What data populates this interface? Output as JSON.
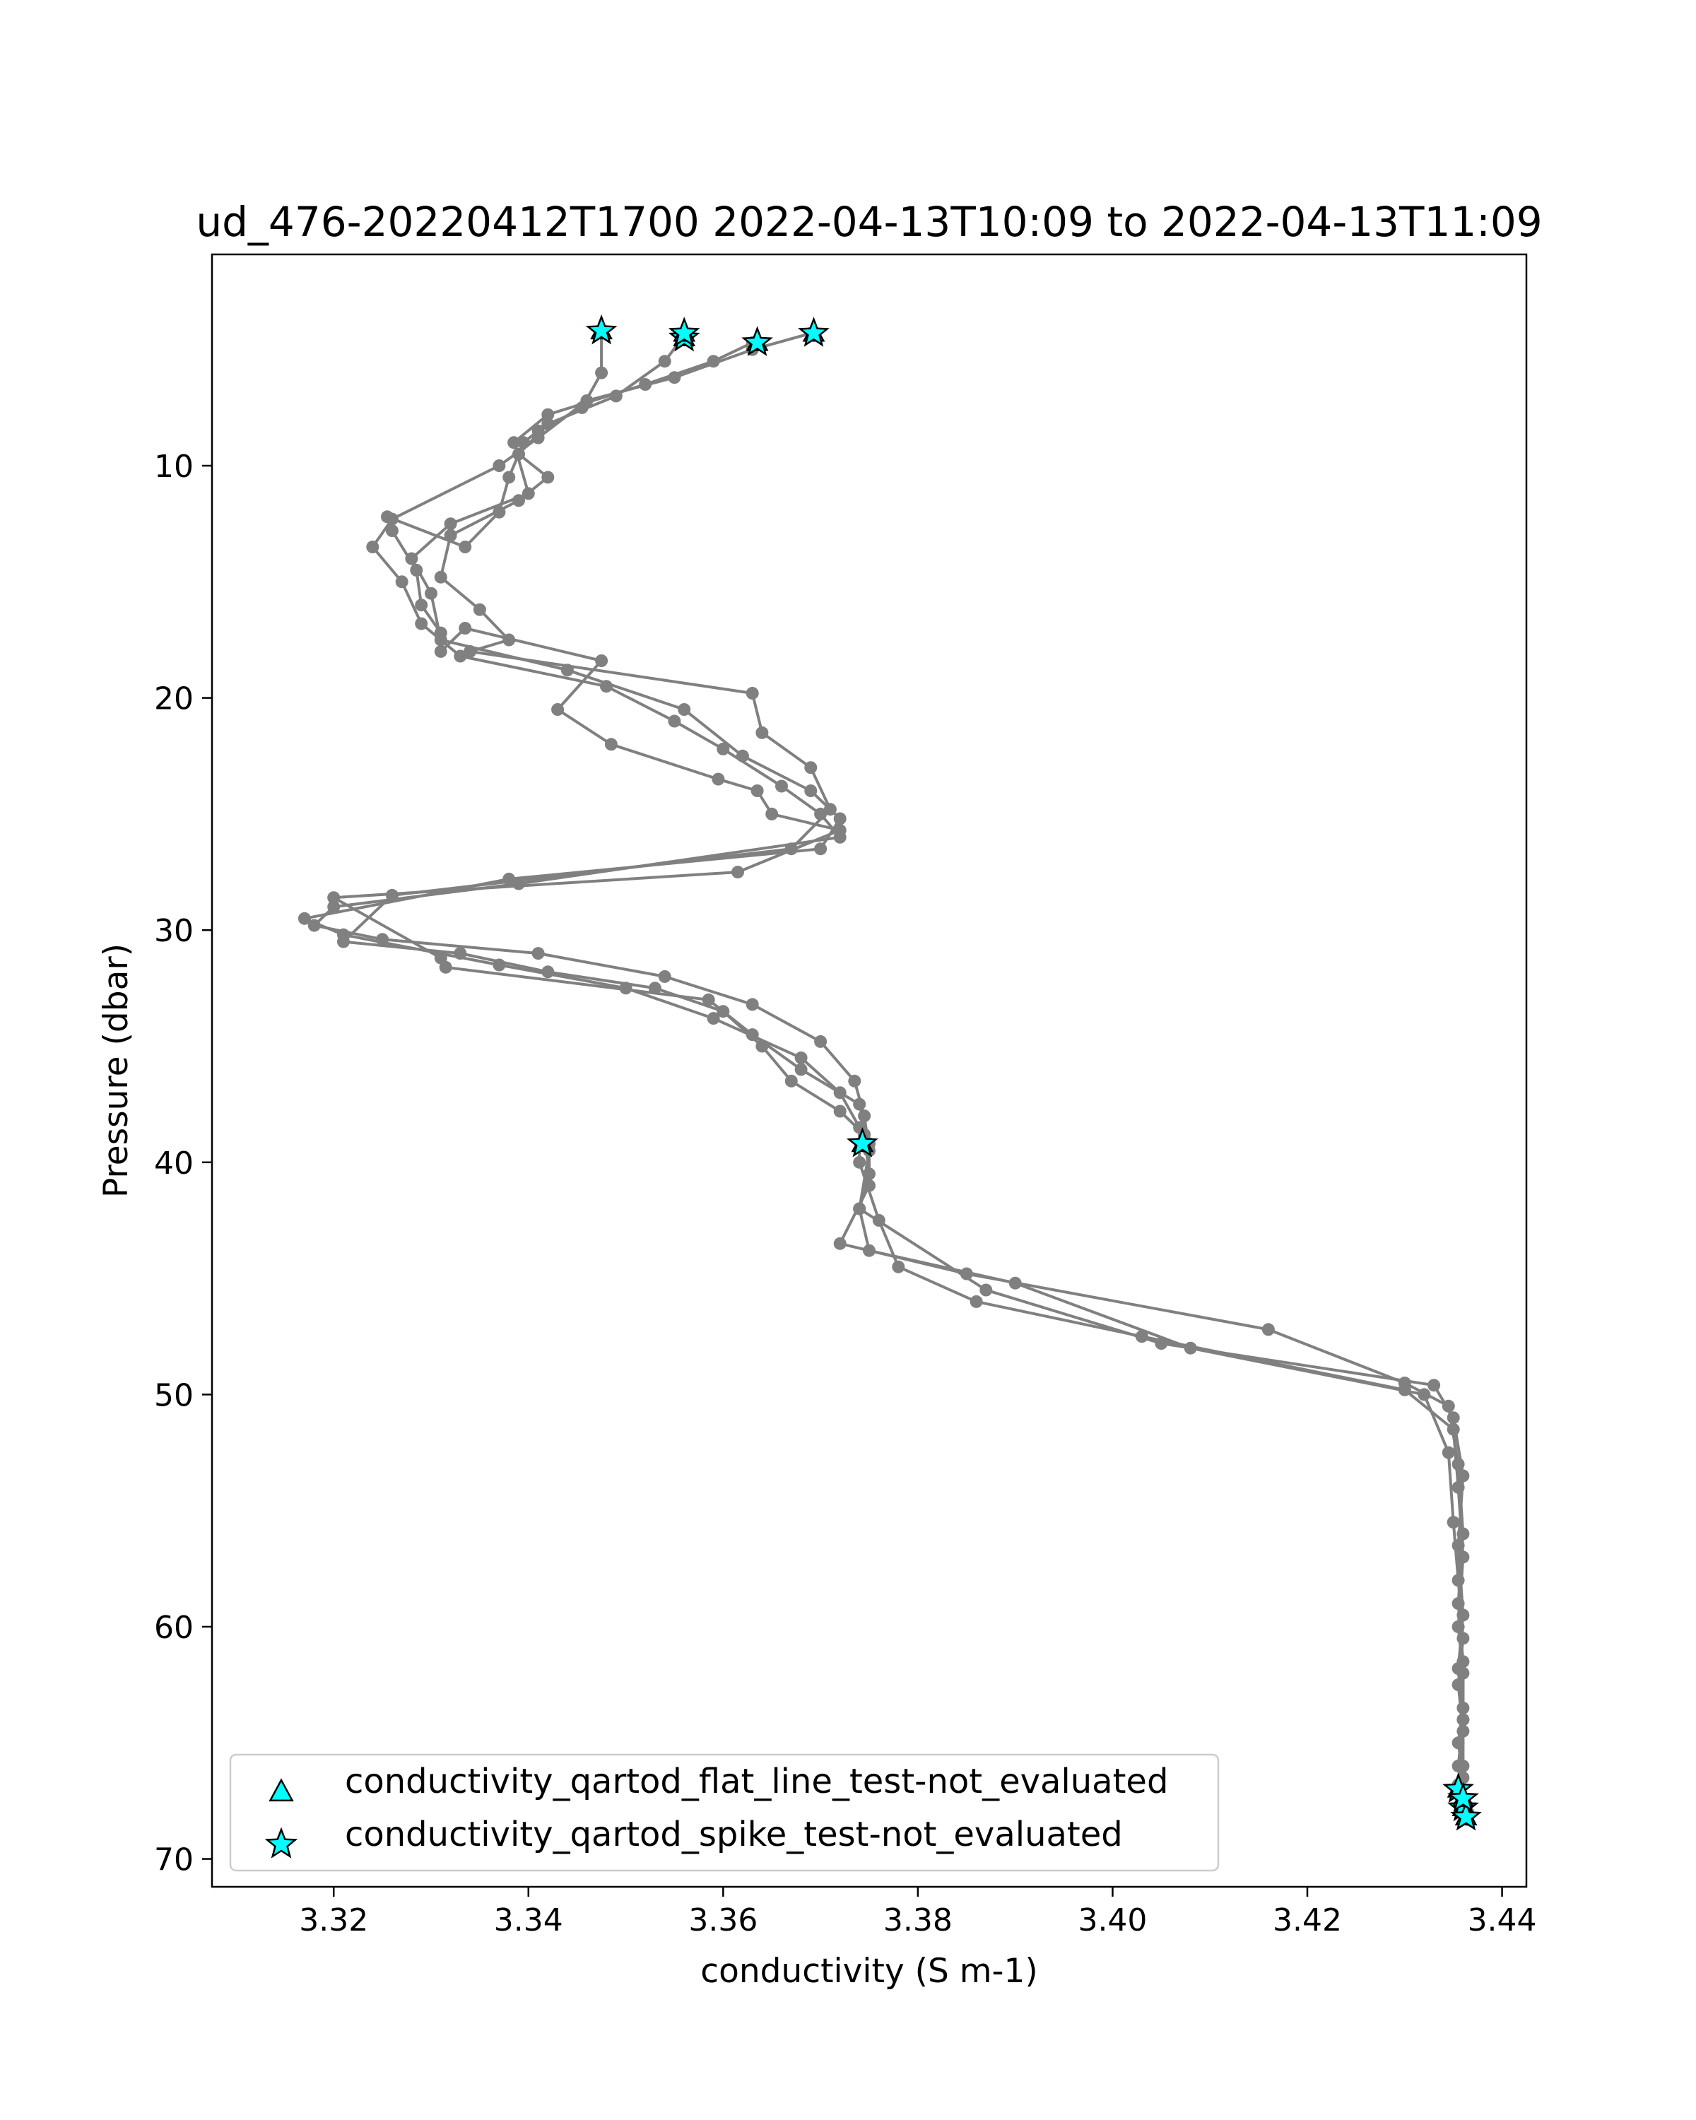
{
  "chart_data": {
    "type": "line",
    "title": "ud_476-20220412T1700 2022-04-13T10:09 to 2022-04-13T11:09",
    "xlabel": "conductivity (S m-1)",
    "ylabel": "Pressure (dbar)",
    "xlim": [
      3.3075,
      3.4425
    ],
    "ylim": [
      71.2,
      0.9
    ],
    "y_inverted": true,
    "grid": false,
    "xticks": [
      "3.32",
      "3.34",
      "3.36",
      "3.38",
      "3.40",
      "3.42",
      "3.44"
    ],
    "xtick_values": [
      3.32,
      3.34,
      3.36,
      3.38,
      3.4,
      3.42,
      3.44
    ],
    "yticks": [
      "10",
      "20",
      "30",
      "40",
      "50",
      "60",
      "70"
    ],
    "ytick_values": [
      10,
      20,
      30,
      40,
      50,
      60,
      70
    ],
    "line_color": "#808080",
    "marker_color": "#00FFFF",
    "legend_position": "lower left",
    "legend": [
      {
        "label": "conductivity_qartod_flat_line_test-not_evaluated",
        "marker": "triangle"
      },
      {
        "label": "conductivity_qartod_spike_test-not_evaluated",
        "marker": "star"
      }
    ],
    "series": [
      {
        "x": [
          3.3475,
          3.3475,
          3.3455,
          3.341,
          3.3395,
          3.338,
          3.337,
          3.3335,
          3.3255,
          3.326,
          3.3285,
          3.329,
          3.331,
          3.331,
          3.3335,
          3.3475,
          3.343,
          3.3485,
          3.3595,
          3.3635,
          3.365,
          3.372,
          3.3615,
          3.32,
          3.331,
          3.3315,
          3.3585,
          3.363,
          3.368,
          3.374,
          3.375,
          3.375,
          3.372,
          3.385,
          3.416,
          3.43,
          3.4345,
          3.4355,
          3.436,
          3.4355,
          3.436,
          3.436,
          3.4355,
          3.436,
          3.436,
          3.4365
        ],
        "y": [
          4.2,
          6.0,
          7.5,
          8.5,
          9.0,
          10.5,
          12.0,
          13.5,
          12.2,
          12.8,
          14.5,
          16.0,
          17.2,
          18.0,
          17.0,
          18.4,
          20.5,
          22.0,
          23.5,
          24.0,
          25.0,
          25.7,
          27.5,
          28.6,
          31.2,
          31.6,
          33.0,
          34.5,
          36.0,
          37.5,
          39.2,
          41.0,
          43.5,
          44.8,
          47.2,
          49.5,
          50.5,
          53.0,
          56.0,
          59.0,
          61.5,
          63.5,
          65.0,
          66.5,
          67.5,
          68.0
        ]
      },
      {
        "x": [
          3.356,
          3.354,
          3.349,
          3.342,
          3.339,
          3.342,
          3.339,
          3.332,
          3.331,
          3.335,
          3.338,
          3.334,
          3.363,
          3.364,
          3.369,
          3.371,
          3.367,
          3.326,
          3.321,
          3.333,
          3.342,
          3.353,
          3.36,
          3.364,
          3.367,
          3.372,
          3.3745,
          3.375,
          3.374,
          3.375,
          3.39,
          3.408,
          3.432,
          3.4345,
          3.435,
          3.4355,
          3.436,
          3.4355,
          3.436,
          3.436,
          3.4355,
          3.4365
        ],
        "y": [
          4.4,
          5.5,
          7.0,
          8.2,
          9.5,
          10.5,
          11.5,
          13.0,
          14.8,
          16.2,
          17.5,
          18.0,
          19.8,
          21.5,
          23.0,
          24.8,
          26.5,
          28.5,
          30.5,
          31.0,
          31.8,
          32.5,
          33.5,
          35.0,
          36.5,
          37.8,
          38.8,
          40.5,
          42.0,
          43.8,
          45.2,
          48.0,
          50.0,
          52.5,
          55.5,
          58.0,
          60.5,
          62.5,
          64.5,
          66.0,
          67.0,
          68.3
        ]
      },
      {
        "x": [
          3.363,
          3.359,
          3.352,
          3.342,
          3.3385,
          3.34,
          3.332,
          3.328,
          3.33,
          3.331,
          3.344,
          3.356,
          3.362,
          3.369,
          3.372,
          3.37,
          3.338,
          3.317,
          3.321,
          3.337,
          3.35,
          3.359,
          3.368,
          3.372,
          3.374,
          3.374,
          3.376,
          3.378,
          3.386,
          3.403,
          3.43,
          3.435,
          3.4355,
          3.436,
          3.4355,
          3.436,
          3.436,
          3.4355,
          3.436
        ],
        "y": [
          4.7,
          5.5,
          6.5,
          7.8,
          9.0,
          11.2,
          12.5,
          14.0,
          15.5,
          17.5,
          18.8,
          20.5,
          22.5,
          24.0,
          25.2,
          26.5,
          27.8,
          29.5,
          30.2,
          31.5,
          32.5,
          33.8,
          35.5,
          37.0,
          38.5,
          40.0,
          42.5,
          44.5,
          46.0,
          47.5,
          49.8,
          51.5,
          54.0,
          57.0,
          60.0,
          62.0,
          64.0,
          66.0,
          67.8
        ]
      },
      {
        "x": [
          3.369,
          3.363,
          3.355,
          3.346,
          3.341,
          3.337,
          3.326,
          3.324,
          3.327,
          3.329,
          3.333,
          3.348,
          3.355,
          3.36,
          3.366,
          3.37,
          3.372,
          3.339,
          3.32,
          3.318,
          3.325,
          3.341,
          3.354,
          3.363,
          3.37,
          3.3735,
          3.3745,
          3.375,
          3.374,
          3.387,
          3.405,
          3.433,
          3.435,
          3.436,
          3.4355,
          3.436,
          3.4355,
          3.436,
          3.4355
        ],
        "y": [
          4.3,
          5.0,
          6.2,
          7.2,
          8.8,
          10.0,
          12.3,
          13.5,
          15.0,
          16.8,
          18.2,
          19.5,
          21.0,
          22.2,
          23.8,
          25.0,
          26.0,
          28.0,
          29.0,
          29.8,
          30.4,
          31.0,
          32.0,
          33.2,
          34.8,
          36.5,
          38.0,
          39.5,
          42.0,
          45.5,
          47.8,
          49.6,
          51.0,
          53.5,
          56.5,
          59.5,
          61.8,
          64.0,
          66.8
        ]
      }
    ],
    "flag_points": [
      {
        "x": 3.3475,
        "y": 4.2
      },
      {
        "x": 3.356,
        "y": 4.5
      },
      {
        "x": 3.356,
        "y": 4.3
      },
      {
        "x": 3.3635,
        "y": 4.7
      },
      {
        "x": 3.3693,
        "y": 4.3
      },
      {
        "x": 3.3743,
        "y": 39.2
      },
      {
        "x": 3.4355,
        "y": 67.0
      },
      {
        "x": 3.436,
        "y": 67.8
      },
      {
        "x": 3.4363,
        "y": 68.2
      },
      {
        "x": 3.436,
        "y": 67.4
      }
    ]
  }
}
